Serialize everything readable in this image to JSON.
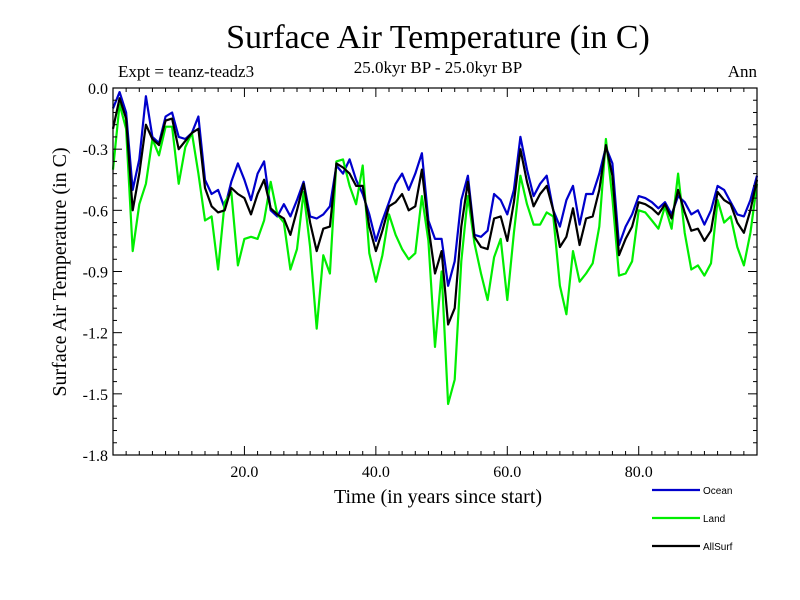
{
  "chart_data": {
    "type": "line",
    "title": "Surface Air Temperature (in C)",
    "subtitle": "25.0kyr BP - 25.0kyr BP",
    "left_note": "Expt = teanz-teadz3",
    "right_note": "Ann",
    "xlabel": "Time (in years since start)",
    "ylabel": "Surface Air Temperature (in C)",
    "xlim": [
      0,
      98
    ],
    "ylim": [
      -1.8,
      0.0
    ],
    "xticks": [
      20,
      40,
      60,
      80
    ],
    "xtick_labels": [
      "20.0",
      "40.0",
      "60.0",
      "80.0"
    ],
    "yticks": [
      0.0,
      -0.3,
      -0.6,
      -0.9,
      -1.2,
      -1.5,
      -1.8
    ],
    "ytick_labels": [
      "0.0",
      "-0.3",
      "-0.6",
      "-0.9",
      "-1.2",
      "-1.5",
      "-1.8"
    ],
    "grid": false,
    "legend_position": "bottom-right",
    "x": [
      0,
      1,
      2,
      3,
      4,
      5,
      6,
      7,
      8,
      9,
      10,
      11,
      12,
      13,
      14,
      15,
      16,
      17,
      18,
      19,
      20,
      21,
      22,
      23,
      24,
      25,
      26,
      27,
      28,
      29,
      30,
      31,
      32,
      33,
      34,
      35,
      36,
      37,
      38,
      39,
      40,
      41,
      42,
      43,
      44,
      45,
      46,
      47,
      48,
      49,
      50,
      51,
      52,
      53,
      54,
      55,
      56,
      57,
      58,
      59,
      60,
      61,
      62,
      63,
      64,
      65,
      66,
      67,
      68,
      69,
      70,
      71,
      72,
      73,
      74,
      75,
      76,
      77,
      78,
      79,
      80,
      81,
      82,
      83,
      84,
      85,
      86,
      87,
      88,
      89,
      90,
      91,
      92,
      93,
      94,
      95,
      96,
      97,
      98
    ],
    "series": [
      {
        "name": "Ocean",
        "color": "#0000cc",
        "values": [
          -0.1,
          -0.02,
          -0.12,
          -0.5,
          -0.35,
          -0.04,
          -0.24,
          -0.27,
          -0.14,
          -0.12,
          -0.24,
          -0.25,
          -0.22,
          -0.14,
          -0.45,
          -0.52,
          -0.5,
          -0.59,
          -0.46,
          -0.37,
          -0.45,
          -0.55,
          -0.42,
          -0.36,
          -0.6,
          -0.63,
          -0.57,
          -0.63,
          -0.55,
          -0.46,
          -0.63,
          -0.64,
          -0.62,
          -0.58,
          -0.38,
          -0.42,
          -0.35,
          -0.45,
          -0.52,
          -0.62,
          -0.75,
          -0.65,
          -0.56,
          -0.47,
          -0.42,
          -0.5,
          -0.42,
          -0.32,
          -0.65,
          -0.74,
          -0.74,
          -0.97,
          -0.85,
          -0.55,
          -0.43,
          -0.72,
          -0.73,
          -0.7,
          -0.52,
          -0.55,
          -0.62,
          -0.5,
          -0.24,
          -0.4,
          -0.53,
          -0.47,
          -0.43,
          -0.6,
          -0.68,
          -0.55,
          -0.48,
          -0.67,
          -0.52,
          -0.52,
          -0.42,
          -0.29,
          -0.37,
          -0.77,
          -0.68,
          -0.62,
          -0.53,
          -0.54,
          -0.56,
          -0.59,
          -0.56,
          -0.62,
          -0.53,
          -0.56,
          -0.62,
          -0.6,
          -0.67,
          -0.6,
          -0.48,
          -0.5,
          -0.56,
          -0.62,
          -0.63,
          -0.55,
          -0.43
        ]
      },
      {
        "name": "Land",
        "color": "#00ee00",
        "values": [
          -0.4,
          -0.08,
          -0.2,
          -0.8,
          -0.57,
          -0.47,
          -0.25,
          -0.33,
          -0.19,
          -0.19,
          -0.47,
          -0.29,
          -0.22,
          -0.42,
          -0.65,
          -0.63,
          -0.89,
          -0.56,
          -0.51,
          -0.87,
          -0.74,
          -0.73,
          -0.74,
          -0.65,
          -0.46,
          -0.62,
          -0.66,
          -0.89,
          -0.79,
          -0.51,
          -0.78,
          -1.18,
          -0.82,
          -0.91,
          -0.36,
          -0.35,
          -0.48,
          -0.57,
          -0.38,
          -0.81,
          -0.95,
          -0.82,
          -0.62,
          -0.72,
          -0.79,
          -0.84,
          -0.81,
          -0.53,
          -0.75,
          -1.27,
          -0.9,
          -1.55,
          -1.43,
          -0.85,
          -0.53,
          -0.76,
          -0.91,
          -1.04,
          -0.83,
          -0.74,
          -1.04,
          -0.71,
          -0.43,
          -0.57,
          -0.67,
          -0.67,
          -0.61,
          -0.63,
          -0.97,
          -1.11,
          -0.8,
          -0.95,
          -0.91,
          -0.86,
          -0.68,
          -0.25,
          -0.54,
          -0.92,
          -0.91,
          -0.85,
          -0.6,
          -0.61,
          -0.65,
          -0.69,
          -0.58,
          -0.69,
          -0.42,
          -0.71,
          -0.89,
          -0.87,
          -0.92,
          -0.86,
          -0.55,
          -0.66,
          -0.63,
          -0.78,
          -0.87,
          -0.71,
          -0.47
        ]
      },
      {
        "name": "AllSurf",
        "color": "#000000",
        "values": [
          -0.2,
          -0.05,
          -0.15,
          -0.6,
          -0.42,
          -0.18,
          -0.25,
          -0.28,
          -0.16,
          -0.15,
          -0.3,
          -0.26,
          -0.22,
          -0.2,
          -0.49,
          -0.58,
          -0.61,
          -0.6,
          -0.49,
          -0.52,
          -0.54,
          -0.62,
          -0.52,
          -0.45,
          -0.59,
          -0.62,
          -0.64,
          -0.72,
          -0.6,
          -0.47,
          -0.66,
          -0.8,
          -0.69,
          -0.68,
          -0.37,
          -0.39,
          -0.42,
          -0.48,
          -0.48,
          -0.68,
          -0.8,
          -0.7,
          -0.58,
          -0.56,
          -0.52,
          -0.6,
          -0.58,
          -0.4,
          -0.68,
          -0.91,
          -0.8,
          -1.16,
          -1.08,
          -0.68,
          -0.46,
          -0.73,
          -0.78,
          -0.79,
          -0.64,
          -0.63,
          -0.75,
          -0.56,
          -0.3,
          -0.46,
          -0.58,
          -0.52,
          -0.48,
          -0.6,
          -0.78,
          -0.73,
          -0.59,
          -0.77,
          -0.64,
          -0.63,
          -0.5,
          -0.28,
          -0.43,
          -0.82,
          -0.74,
          -0.68,
          -0.56,
          -0.57,
          -0.59,
          -0.62,
          -0.57,
          -0.64,
          -0.5,
          -0.61,
          -0.7,
          -0.69,
          -0.75,
          -0.7,
          -0.51,
          -0.55,
          -0.57,
          -0.66,
          -0.71,
          -0.6,
          -0.45
        ]
      }
    ]
  }
}
